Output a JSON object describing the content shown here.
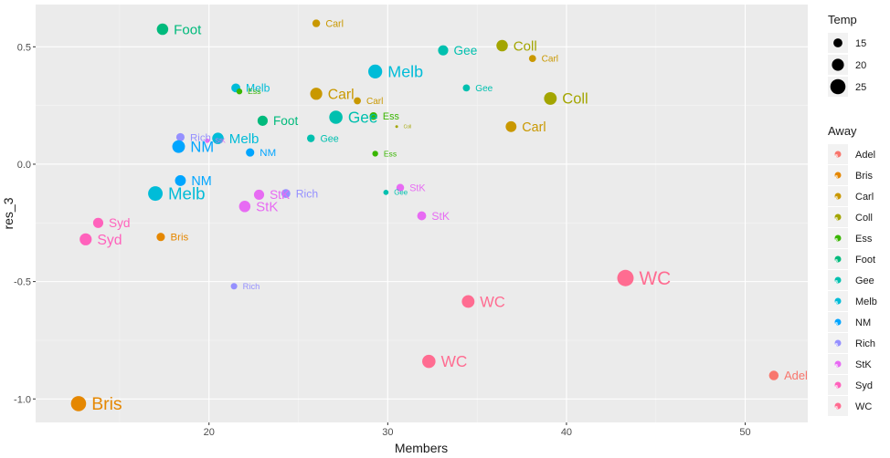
{
  "chart_data": {
    "type": "scatter",
    "title": "",
    "xlabel": "Members",
    "ylabel": "res_3",
    "xlim": [
      10.3,
      53.5
    ],
    "ylim": [
      -1.1,
      0.68
    ],
    "x_ticks": [
      20,
      30,
      40,
      50
    ],
    "y_ticks": [
      -1.0,
      -0.5,
      0.0,
      0.5
    ],
    "x_tick_labels": [
      "20",
      "30",
      "40",
      "50"
    ],
    "y_tick_labels": [
      "-1.0",
      "-0.5",
      "0.0",
      "0.5"
    ],
    "grid": true,
    "legend_placement": "right",
    "size_legend": {
      "title": "Temp",
      "entries": [
        {
          "label": "15",
          "value": 15
        },
        {
          "label": "20",
          "value": 20
        },
        {
          "label": "25",
          "value": 25
        }
      ]
    },
    "color_legend": {
      "title": "Away",
      "entries": [
        {
          "label": "Adel",
          "color": "#F8766D"
        },
        {
          "label": "Bris",
          "color": "#E58700"
        },
        {
          "label": "Carl",
          "color": "#C99800"
        },
        {
          "label": "Coll",
          "color": "#A3A500"
        },
        {
          "label": "Ess",
          "color": "#39B600"
        },
        {
          "label": "Foot",
          "color": "#00BA7C"
        },
        {
          "label": "Gee",
          "color": "#00C0AF"
        },
        {
          "label": "Melb",
          "color": "#00BCD8"
        },
        {
          "label": "NM",
          "color": "#00A5FF"
        },
        {
          "label": "Rich",
          "color": "#9590FF"
        },
        {
          "label": "StK",
          "color": "#E76BF3"
        },
        {
          "label": "Syd",
          "color": "#FF62BC"
        },
        {
          "label": "WC",
          "color": "#FF6C91"
        }
      ]
    },
    "points": [
      {
        "x": 17.4,
        "y": 0.575,
        "temp": 19,
        "away": "Foot"
      },
      {
        "x": 26.0,
        "y": 0.6,
        "temp": 13,
        "away": "Carl"
      },
      {
        "x": 33.1,
        "y": 0.485,
        "temp": 17,
        "away": "Gee"
      },
      {
        "x": 36.4,
        "y": 0.505,
        "temp": 19,
        "away": "Coll"
      },
      {
        "x": 38.1,
        "y": 0.45,
        "temp": 12,
        "away": "Carl"
      },
      {
        "x": 29.3,
        "y": 0.395,
        "temp": 23,
        "away": "Melb"
      },
      {
        "x": 21.5,
        "y": 0.325,
        "temp": 15,
        "away": "Melb"
      },
      {
        "x": 21.7,
        "y": 0.31,
        "temp": 10,
        "away": "Ess"
      },
      {
        "x": 26.0,
        "y": 0.3,
        "temp": 20,
        "away": "Carl"
      },
      {
        "x": 28.3,
        "y": 0.27,
        "temp": 12,
        "away": "Carl"
      },
      {
        "x": 34.4,
        "y": 0.325,
        "temp": 12,
        "away": "Gee"
      },
      {
        "x": 39.1,
        "y": 0.28,
        "temp": 21,
        "away": "Coll"
      },
      {
        "x": 23.0,
        "y": 0.185,
        "temp": 17,
        "away": "Foot"
      },
      {
        "x": 27.1,
        "y": 0.2,
        "temp": 22,
        "away": "Gee"
      },
      {
        "x": 29.2,
        "y": 0.205,
        "temp": 13,
        "away": "Ess"
      },
      {
        "x": 30.5,
        "y": 0.16,
        "temp": 5,
        "away": "Coll"
      },
      {
        "x": 36.9,
        "y": 0.16,
        "temp": 18,
        "away": "Carl"
      },
      {
        "x": 18.4,
        "y": 0.115,
        "temp": 14,
        "away": "Rich"
      },
      {
        "x": 20.5,
        "y": 0.11,
        "temp": 19,
        "away": "Melb"
      },
      {
        "x": 18.3,
        "y": 0.075,
        "temp": 21,
        "away": "NM"
      },
      {
        "x": 19.9,
        "y": 0.1,
        "temp": 8,
        "away": "StK"
      },
      {
        "x": 25.7,
        "y": 0.11,
        "temp": 13,
        "away": "Gee"
      },
      {
        "x": 22.3,
        "y": 0.05,
        "temp": 14,
        "away": "NM"
      },
      {
        "x": 29.3,
        "y": 0.045,
        "temp": 10,
        "away": "Ess"
      },
      {
        "x": 30.7,
        "y": -0.1,
        "temp": 13,
        "away": "StK"
      },
      {
        "x": 29.9,
        "y": -0.12,
        "temp": 9,
        "away": "Gee"
      },
      {
        "x": 18.4,
        "y": -0.07,
        "temp": 18,
        "away": "NM"
      },
      {
        "x": 17.0,
        "y": -0.125,
        "temp": 24,
        "away": "Melb"
      },
      {
        "x": 22.8,
        "y": -0.13,
        "temp": 17,
        "away": "StK"
      },
      {
        "x": 24.3,
        "y": -0.125,
        "temp": 15,
        "away": "Rich"
      },
      {
        "x": 22.0,
        "y": -0.18,
        "temp": 19,
        "away": "StK"
      },
      {
        "x": 31.9,
        "y": -0.22,
        "temp": 15,
        "away": "StK"
      },
      {
        "x": 13.8,
        "y": -0.25,
        "temp": 17,
        "away": "Syd"
      },
      {
        "x": 13.1,
        "y": -0.32,
        "temp": 20,
        "away": "Syd"
      },
      {
        "x": 17.3,
        "y": -0.31,
        "temp": 14,
        "away": "Bris"
      },
      {
        "x": 21.4,
        "y": -0.52,
        "temp": 11,
        "away": "Rich"
      },
      {
        "x": 43.3,
        "y": -0.485,
        "temp": 27,
        "away": "WC"
      },
      {
        "x": 34.5,
        "y": -0.585,
        "temp": 21,
        "away": "WC"
      },
      {
        "x": 32.3,
        "y": -0.84,
        "temp": 22,
        "away": "WC"
      },
      {
        "x": 12.7,
        "y": -1.02,
        "temp": 25,
        "away": "Bris"
      },
      {
        "x": 51.6,
        "y": -0.9,
        "temp": 16,
        "away": "Adel"
      }
    ]
  }
}
